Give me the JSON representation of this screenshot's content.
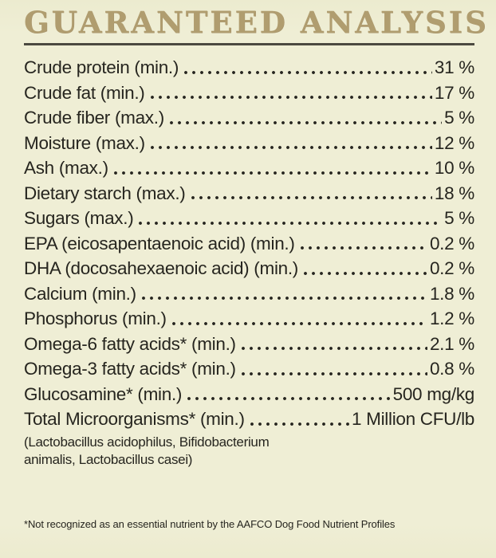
{
  "colors": {
    "background": "#efeed5",
    "title_text": "#b09d6f",
    "rule": "#4b4940",
    "body_text": "#26251f"
  },
  "header": {
    "title": "GUARANTEED ANALYSIS"
  },
  "analysis": {
    "rows": [
      {
        "label": "Crude protein (min.)",
        "value": "31 %"
      },
      {
        "label": "Crude fat (min.)",
        "value": "17 %"
      },
      {
        "label": "Crude fiber (max.)",
        "value": "5 %"
      },
      {
        "label": "Moisture (max.)",
        "value": "12 %"
      },
      {
        "label": "Ash (max.)",
        "value": "10 %"
      },
      {
        "label": "Dietary starch (max.)",
        "value": "18 %"
      },
      {
        "label": "Sugars (max.)",
        "value": "5 %"
      },
      {
        "label": "EPA (eicosapentaenoic acid) (min.)",
        "value": "0.2 %"
      },
      {
        "label": "DHA (docosahexaenoic acid) (min.)",
        "value": "0.2 %"
      },
      {
        "label": "Calcium (min.)",
        "value": "1.8 %"
      },
      {
        "label": "Phosphorus (min.)",
        "value": "1.2 %"
      },
      {
        "label": "Omega-6 fatty acids* (min.)",
        "value": "2.1 %"
      },
      {
        "label": "Omega-3 fatty acids* (min.)",
        "value": "0.8 %"
      },
      {
        "label": "Glucosamine* (min.)",
        "value": "500 mg/kg"
      },
      {
        "label": "Total Microorganisms* (min.)",
        "value": "1 Million CFU/lb"
      }
    ],
    "microorganisms_note": "(Lactobacillus acidophilus, Bifidobacterium\nanimalis, Lactobacillus casei)",
    "footnote": "*Not recognized as an essential nutrient by the AAFCO Dog Food Nutrient Profiles"
  }
}
